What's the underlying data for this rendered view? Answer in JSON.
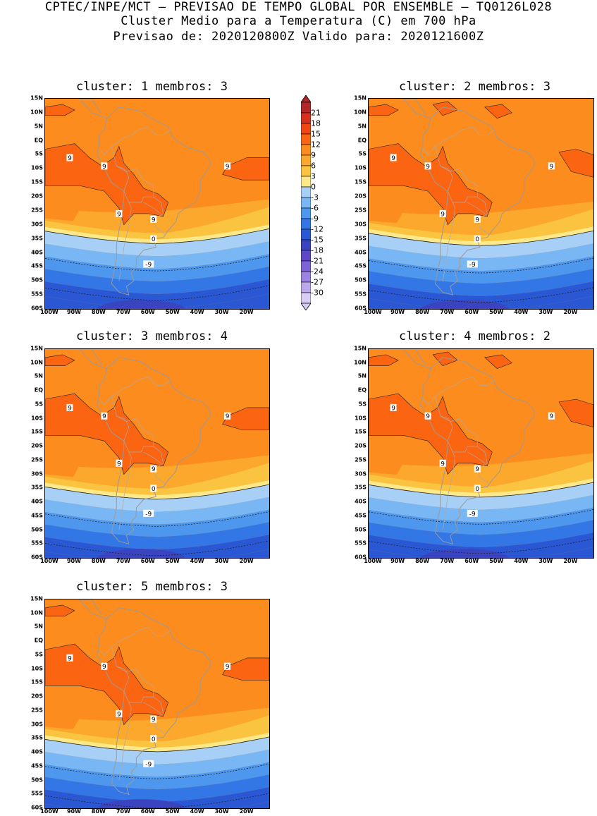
{
  "header": {
    "line1": "CPTEC/INPE/MCT – PREVISAO DE TEMPO GLOBAL POR ENSEMBLE – TQ0126L028",
    "line2": "Cluster Medio para a Temperatura (C) em 700 hPa",
    "line3": "Previsao de: 2020120800Z   Valido para: 2020121600Z"
  },
  "panels": [
    {
      "title": "cluster: 1   membros: 3"
    },
    {
      "title": "cluster: 2   membros: 3"
    },
    {
      "title": "cluster: 3   membros: 4"
    },
    {
      "title": "cluster: 4   membros: 2"
    },
    {
      "title": "cluster: 5   membros: 3"
    }
  ],
  "lat_labels": [
    "15N",
    "10N",
    "5N",
    "EQ",
    "5S",
    "10S",
    "15S",
    "20S",
    "25S",
    "30S",
    "35S",
    "40S",
    "45S",
    "50S",
    "55S",
    "60S"
  ],
  "lon_labels": [
    "100W",
    "90W",
    "80W",
    "70W",
    "60W",
    "50W",
    "40W",
    "30W",
    "20W"
  ],
  "colorbar": {
    "labels": [
      "21",
      "18",
      "15",
      "12",
      "9",
      "6",
      "3",
      "0",
      "-3",
      "-6",
      "-9",
      "-12",
      "-15",
      "-18",
      "-21",
      "-24",
      "-27",
      "-30"
    ],
    "colors": [
      "#b0282a",
      "#d8301f",
      "#f04614",
      "#fb6410",
      "#fd8c1e",
      "#fba82c",
      "#fbc440",
      "#fde88a",
      "#a8cff6",
      "#79b6f4",
      "#4e97ee",
      "#3377e6",
      "#2a58d4",
      "#3b44c0",
      "#5d48c8",
      "#7d62d8",
      "#9b83e2",
      "#b9a8ec",
      "#d8cef4"
    ]
  },
  "contour_labels": {
    "nine": "9",
    "zero": "0",
    "minus_nine": "-9"
  }
}
